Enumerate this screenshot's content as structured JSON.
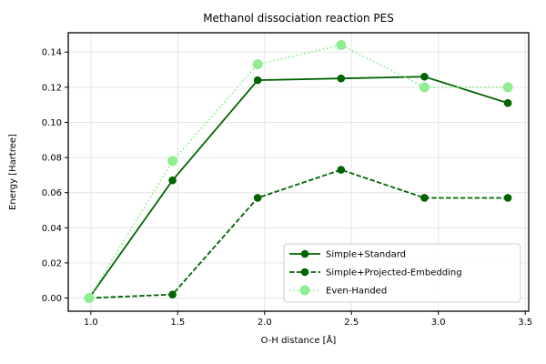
{
  "chart_data": {
    "type": "line",
    "title": "Methanol dissociation reaction PES",
    "xlabel": "O-H distance [Å]",
    "ylabel": "Energy [Hartree]",
    "x": [
      0.99,
      1.47,
      1.96,
      2.44,
      2.92,
      3.4
    ],
    "series": [
      {
        "name": "Simple+Standard",
        "color": "#006400",
        "linestyle": "solid",
        "marker": "circle",
        "marker_radius": 4.3,
        "values": [
          0.0,
          0.067,
          0.124,
          0.125,
          0.126,
          0.111
        ]
      },
      {
        "name": "Simple+Projected-Embedding",
        "color": "#006400",
        "linestyle": "dashed",
        "marker": "circle",
        "marker_radius": 4.3,
        "values": [
          0.0,
          0.002,
          0.057,
          0.073,
          0.057,
          0.057
        ]
      },
      {
        "name": "Even-Handed",
        "color": "#90EE90",
        "linestyle": "dotted",
        "marker": "circle",
        "marker_radius": 5.5,
        "values": [
          0.0,
          0.078,
          0.133,
          0.144,
          0.12,
          0.12
        ]
      }
    ],
    "x_ticks": [
      1.0,
      1.5,
      2.0,
      2.5,
      3.0,
      3.5
    ],
    "x_tick_labels": [
      "1.0",
      "1.5",
      "2.0",
      "2.5",
      "3.0",
      "3.5"
    ],
    "y_ticks": [
      0.0,
      0.02,
      0.04,
      0.06,
      0.08,
      0.1,
      0.12,
      0.14
    ],
    "y_tick_labels": [
      "0.00",
      "0.02",
      "0.04",
      "0.06",
      "0.08",
      "0.10",
      "0.12",
      "0.14"
    ],
    "xlim": [
      0.87,
      3.52
    ],
    "ylim": [
      -0.0075,
      0.151
    ],
    "grid": true,
    "legend": {
      "position": "lower right",
      "entries": [
        "Simple+Standard",
        "Simple+Projected-Embedding",
        "Even-Handed"
      ]
    }
  },
  "style": {
    "background_color": "#ffffff",
    "grid_color": "#e6e6e6",
    "spine_color": "#000000",
    "text_color": "#000000",
    "legend_border_color": "#cccccc",
    "legend_bg_color": "#ffffff"
  }
}
